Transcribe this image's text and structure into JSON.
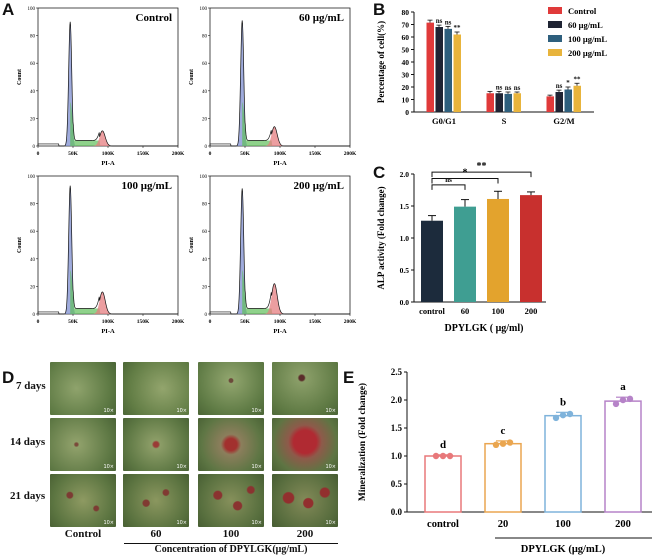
{
  "panels": {
    "A": "A",
    "B": "B",
    "C": "C",
    "D": "D",
    "E": "E"
  },
  "panel_a": {
    "x_label": "PI-A",
    "y_label": "Count",
    "x_ticks": [
      "0",
      "50K",
      "100K",
      "150K",
      "200K"
    ],
    "y_ticks": [
      "0",
      "20",
      "40",
      "60",
      "80",
      "100"
    ],
    "histograms": [
      {
        "label": "Control",
        "g1_peak": 90,
        "g2_peak": 11
      },
      {
        "label": "60 μg/mL",
        "g1_peak": 91,
        "g2_peak": 14
      },
      {
        "label": "100 μg/mL",
        "g1_peak": 93,
        "g2_peak": 16
      },
      {
        "label": "200 μg/mL",
        "g1_peak": 91,
        "g2_peak": 22
      }
    ]
  },
  "chart_data": [
    {
      "type": "bar",
      "panel": "B",
      "ylabel": "Percentage of cell(%)",
      "ylim": [
        0,
        80
      ],
      "yticks": [
        0,
        10,
        20,
        30,
        40,
        50,
        60,
        70,
        80
      ],
      "categories": [
        "G0/G1",
        "S",
        "G2/M"
      ],
      "legend_position": "top-right",
      "series": [
        {
          "name": "Control",
          "color": "#e03a3a",
          "values": [
            71.5,
            15,
            12.5
          ],
          "errors": [
            2,
            1.5,
            1
          ],
          "sig": [
            "",
            "",
            ""
          ]
        },
        {
          "name": "60 μg/mL",
          "color": "#1f2433",
          "values": [
            68,
            15,
            16
          ],
          "errors": [
            1.5,
            1.5,
            1.5
          ],
          "sig": [
            "ns",
            "ns",
            "ns"
          ]
        },
        {
          "name": "100 μg/mL",
          "color": "#2e5f7d",
          "values": [
            66.5,
            14.5,
            18
          ],
          "errors": [
            2,
            1.5,
            2
          ],
          "sig": [
            "ns",
            "ns",
            "*"
          ]
        },
        {
          "name": "200 μg/mL",
          "color": "#e8b43c",
          "values": [
            62,
            15,
            21
          ],
          "errors": [
            2,
            1,
            2
          ],
          "sig": [
            "**",
            "ns",
            "**"
          ]
        }
      ]
    },
    {
      "type": "bar",
      "panel": "C",
      "ylabel": "ALP activity (Fold change)",
      "xlabel": "DPYLGK ( μg/ml)",
      "ylim": [
        0,
        2.0
      ],
      "yticks": [
        "0.0",
        "0.5",
        "1.0",
        "1.5",
        "2.0"
      ],
      "categories": [
        "control",
        "60",
        "100",
        "200"
      ],
      "colors": [
        "#1c2b3c",
        "#3f9e92",
        "#e3a32d",
        "#c8302e"
      ],
      "values": [
        1.27,
        1.49,
        1.61,
        1.67
      ],
      "errors": [
        0.08,
        0.11,
        0.12,
        0.05
      ],
      "brackets": [
        {
          "from": 0,
          "to": 1,
          "label": "ns"
        },
        {
          "from": 0,
          "to": 2,
          "label": "*"
        },
        {
          "from": 0,
          "to": 3,
          "label": "**"
        }
      ]
    },
    {
      "type": "bar",
      "panel": "E",
      "ylabel": "Mineralization (Fold change)",
      "xlabel": "DPYLGK (μg/mL)",
      "ylim": [
        0,
        2.5
      ],
      "yticks": [
        "0.0",
        "0.5",
        "1.0",
        "1.5",
        "2.0",
        "2.5"
      ],
      "categories": [
        "control",
        "20",
        "100",
        "200"
      ],
      "colors": [
        "#e8787a",
        "#eaa650",
        "#7fb3db",
        "#b683c8"
      ],
      "values": [
        1.0,
        1.22,
        1.72,
        1.98
      ],
      "errors": [
        0.02,
        0.05,
        0.06,
        0.07
      ],
      "letters": [
        "d",
        "c",
        "b",
        "a"
      ],
      "points": [
        [
          1.0,
          1.0,
          1.0
        ],
        [
          1.2,
          1.22,
          1.24
        ],
        [
          1.68,
          1.73,
          1.75
        ],
        [
          1.93,
          2.0,
          2.02
        ]
      ]
    }
  ],
  "panel_d": {
    "rows": [
      "7 days",
      "14 days",
      "21 days"
    ],
    "cols": [
      "Control",
      "60",
      "100",
      "200"
    ],
    "magnification": "10×",
    "caption": "Concentration of DPYLGK(μg/mL)"
  }
}
